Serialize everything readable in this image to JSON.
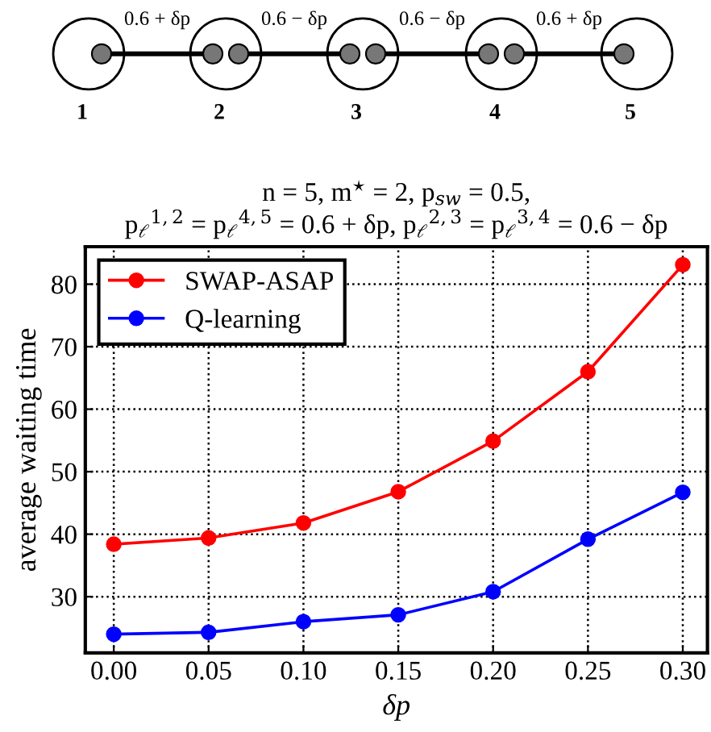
{
  "chart_data": {
    "type": "line",
    "title": "n = 5, m$^{⋆}$ = 2, p$_{sw}$ = 0.5,\np$_{ℓ}$$^{1,2}$ = p$_{ℓ}$$^{4,5}$ = 0.6 + δp, p$_{ℓ}$$^{2,3}$ = p$_{ℓ}$$^{3,4}$ = 0.6 − δp",
    "xlabel": "δp",
    "ylabel": "average waiting time",
    "annotations": [
      "0.6 + δp",
      "0.6 − δp",
      "0.6 − δp",
      "0.6 + δp",
      "1",
      "2",
      "3",
      "4",
      "5"
    ],
    "x": [
      0.0,
      0.05,
      0.1,
      0.15,
      0.2,
      0.25,
      0.3
    ],
    "series": [
      {
        "name": "SWAP-ASAP",
        "color": "#ff0000",
        "values": [
          38.4,
          39.4,
          41.8,
          46.8,
          54.9,
          66.0,
          83.1
        ]
      },
      {
        "name": "Q-learning",
        "color": "#0000ff",
        "values": [
          24.0,
          24.3,
          26.0,
          27.1,
          30.8,
          39.2,
          46.7
        ]
      }
    ],
    "xlim": [
      -0.015,
      0.313
    ],
    "ylim": [
      21,
      86
    ],
    "xticks": [
      {
        "value": 0.0,
        "label": "0.00"
      },
      {
        "value": 0.05,
        "label": "0.05"
      },
      {
        "value": 0.1,
        "label": "0.10"
      },
      {
        "value": 0.15,
        "label": "0.15"
      },
      {
        "value": 0.2,
        "label": "0.20"
      },
      {
        "value": 0.25,
        "label": "0.25"
      },
      {
        "value": 0.3,
        "label": "0.30"
      }
    ],
    "yticks": [
      30,
      40,
      50,
      60,
      70,
      80
    ],
    "grid": true,
    "legend": "top left",
    "marker": "circle",
    "line_style": "solid"
  }
}
